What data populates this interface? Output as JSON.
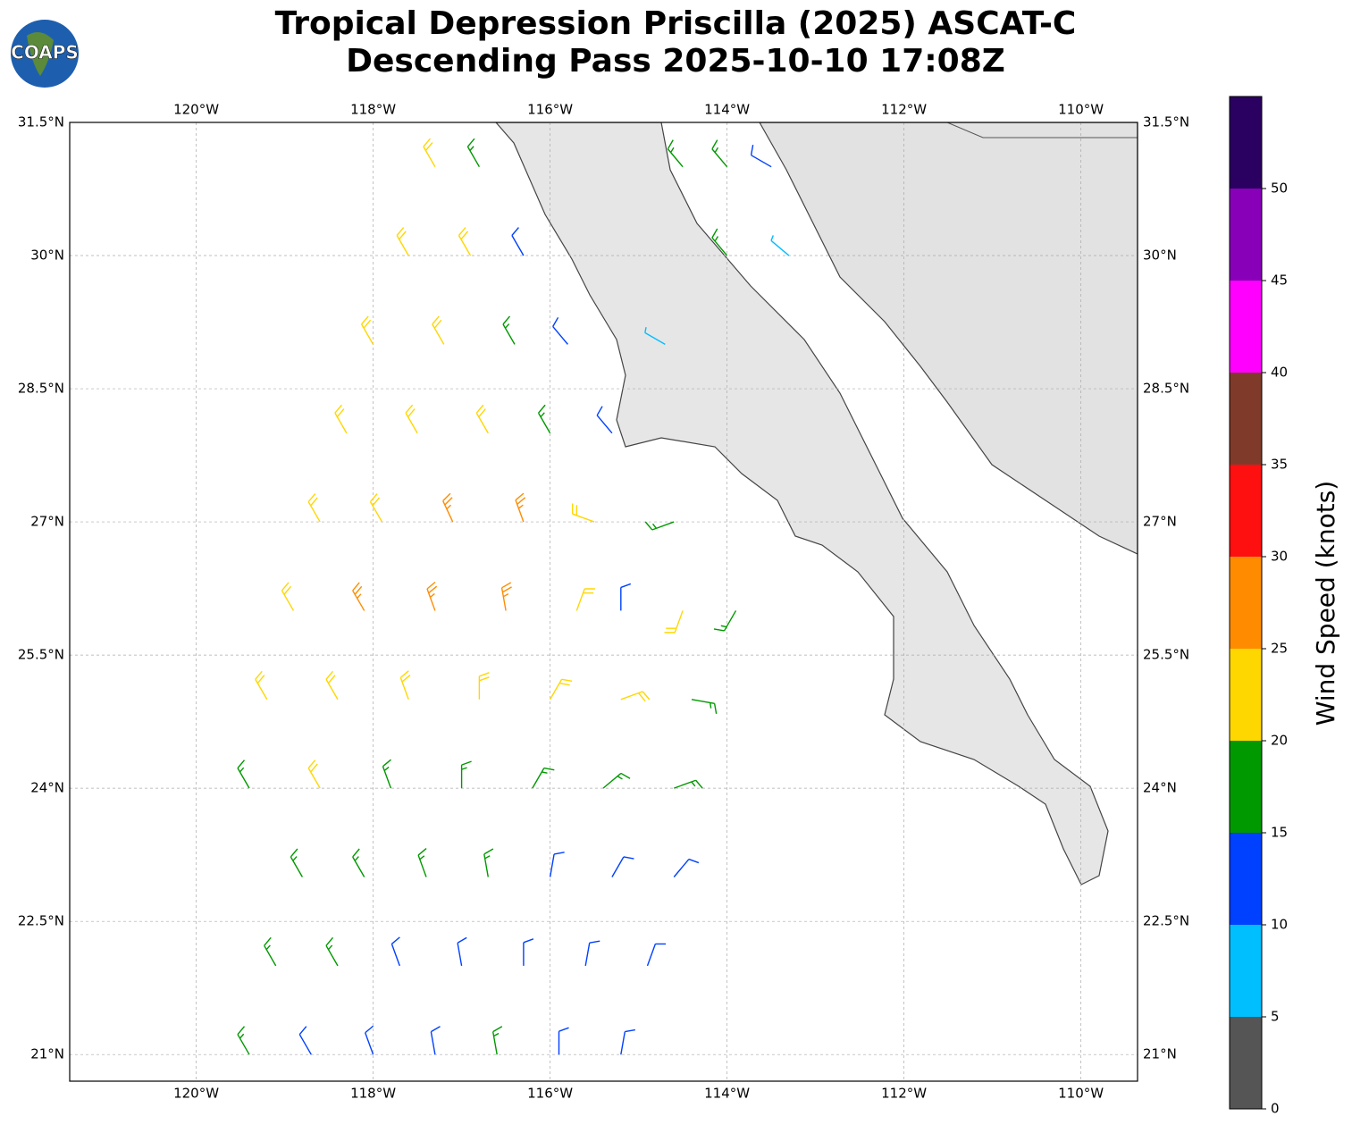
{
  "logo": "COAPS",
  "chart_data": {
    "type": "barbs",
    "title": "Tropical Depression Priscilla (2025) ASCAT-C",
    "subtitle": "Descending Pass 2025-10-10 17:08Z",
    "xlim": [
      -121.43,
      -109.36
    ],
    "ylim": [
      20.7,
      31.5
    ],
    "xticks": [
      {
        "value": -120,
        "label": "120°W"
      },
      {
        "value": -118,
        "label": "118°W"
      },
      {
        "value": -116,
        "label": "116°W"
      },
      {
        "value": -114,
        "label": "114°W"
      },
      {
        "value": -112,
        "label": "112°W"
      },
      {
        "value": -110,
        "label": "110°W"
      }
    ],
    "yticks": [
      {
        "value": 21,
        "label": "21°N"
      },
      {
        "value": 22.5,
        "label": "22.5°N"
      },
      {
        "value": 24,
        "label": "24°N"
      },
      {
        "value": 25.5,
        "label": "25.5°N"
      },
      {
        "value": 27,
        "label": "27°N"
      },
      {
        "value": 28.5,
        "label": "28.5°N"
      },
      {
        "value": 30,
        "label": "30°N"
      },
      {
        "value": 31.5,
        "label": "31.5°N"
      }
    ],
    "grid": true,
    "barbs": {
      "lon": [
        -117.3,
        -116.8,
        -114.5,
        -114.0,
        -113.5,
        -117.6,
        -116.9,
        -116.3,
        -114.0,
        -113.3,
        -118.0,
        -117.2,
        -116.4,
        -115.8,
        -114.7,
        -118.3,
        -117.5,
        -116.7,
        -116.0,
        -115.3,
        -118.6,
        -117.9,
        -117.1,
        -116.3,
        -115.5,
        -114.6,
        -118.9,
        -118.1,
        -117.3,
        -116.5,
        -115.7,
        -115.2,
        -114.5,
        -113.9,
        -119.2,
        -118.4,
        -117.6,
        -116.8,
        -116.0,
        -115.2,
        -114.4,
        -119.4,
        -118.6,
        -117.8,
        -117.0,
        -116.2,
        -115.4,
        -114.6,
        -118.8,
        -118.1,
        -117.4,
        -116.7,
        -116.0,
        -115.3,
        -114.6,
        -119.1,
        -118.4,
        -117.7,
        -117.0,
        -116.3,
        -115.6,
        -114.9,
        -119.4,
        -118.7,
        -118.0,
        -117.3,
        -116.6,
        -115.9,
        -115.2
      ],
      "lat": [
        31,
        31,
        31,
        31,
        31,
        30,
        30,
        30,
        30,
        30,
        29,
        29,
        29,
        29,
        29,
        28,
        28,
        28,
        28,
        28,
        27,
        27,
        27,
        27,
        27,
        27,
        26,
        26,
        26,
        26,
        26,
        26,
        26,
        26,
        25,
        25,
        25,
        25,
        25,
        25,
        25,
        24,
        24,
        24,
        24,
        24,
        24,
        24,
        23,
        23,
        23,
        23,
        23,
        23,
        23,
        22,
        22,
        22,
        22,
        22,
        22,
        22,
        21,
        21,
        21,
        21,
        21,
        21,
        21
      ],
      "speed": [
        22,
        18,
        17,
        18,
        10,
        22,
        20,
        14,
        16,
        9,
        22,
        22,
        17,
        12,
        7,
        22,
        23,
        21,
        16,
        12,
        22,
        24,
        26,
        25,
        22,
        18,
        22,
        26,
        27,
        27,
        24,
        12,
        23,
        18,
        20,
        23,
        24,
        24,
        24,
        20,
        17,
        18,
        22,
        18,
        18,
        18,
        18,
        17,
        17,
        16,
        15,
        15,
        14,
        13,
        13,
        17,
        15,
        13,
        13,
        13,
        12,
        12,
        17,
        13,
        14,
        14,
        16,
        12,
        12
      ],
      "direction": [
        330,
        330,
        320,
        320,
        300,
        330,
        330,
        330,
        320,
        310,
        330,
        330,
        330,
        320,
        300,
        330,
        330,
        330,
        330,
        320,
        330,
        330,
        335,
        340,
        290,
        250,
        330,
        330,
        340,
        350,
        20,
        0,
        200,
        210,
        330,
        330,
        340,
        0,
        30,
        70,
        100,
        330,
        330,
        340,
        0,
        30,
        50,
        70,
        330,
        330,
        340,
        350,
        10,
        30,
        40,
        330,
        330,
        340,
        350,
        0,
        10,
        20,
        330,
        330,
        340,
        350,
        350,
        0,
        10
      ]
    },
    "colorbar": {
      "label": "Wind Speed (knots)",
      "bounds": [
        0,
        5,
        10,
        15,
        20,
        25,
        30,
        35,
        40,
        45,
        50,
        55
      ],
      "colors": [
        "#555555",
        "#00bfff",
        "#0040ff",
        "#009900",
        "#ffd700",
        "#ff8c00",
        "#ff1010",
        "#803a2a",
        "#ff00ff",
        "#8800b8",
        "#2a0060"
      ],
      "ticks": [
        0,
        5,
        10,
        15,
        20,
        25,
        30,
        35,
        40,
        45,
        50
      ]
    }
  }
}
